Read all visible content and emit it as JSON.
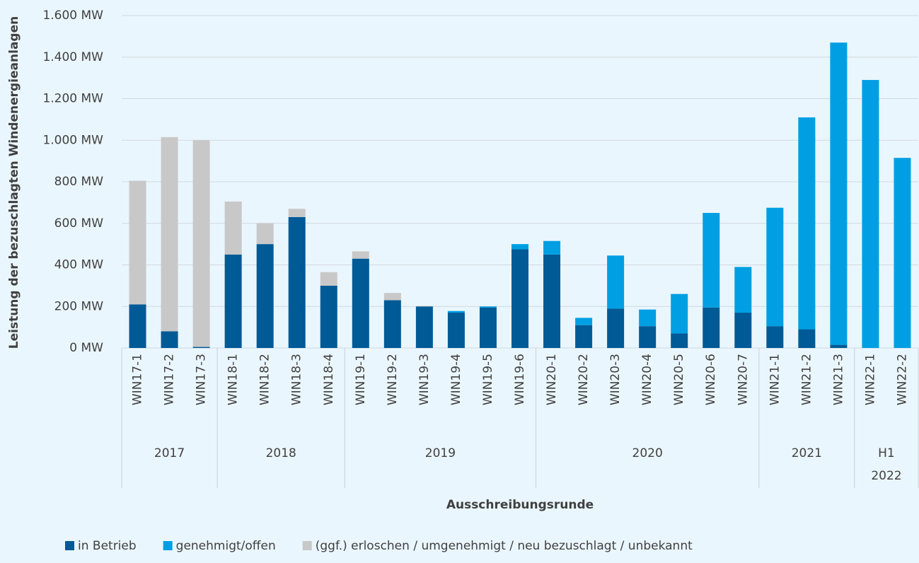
{
  "chart_data": {
    "type": "bar",
    "stacked": true,
    "x_label": "Ausschreibungsrunde",
    "y_label": "Leistung der bezuschlagten Windenergieanlagen",
    "categories": [
      "WIN17-1",
      "WIN17-2",
      "WIN17-3",
      "WIN18-1",
      "WIN18-2",
      "WIN18-3",
      "WIN18-4",
      "WIN19-1",
      "WIN19-2",
      "WIN19-3",
      "WIN19-4",
      "WIN19-5",
      "WIN19-6",
      "WIN20-1",
      "WIN20-2",
      "WIN20-3",
      "WIN20-4",
      "WIN20-5",
      "WIN20-6",
      "WIN20-7",
      "WIN21-1",
      "WIN21-2",
      "WIN21-3",
      "WIN22-1",
      "WIN22-2"
    ],
    "groups": [
      {
        "lines": [
          "2017"
        ],
        "size": 3
      },
      {
        "lines": [
          "2018"
        ],
        "size": 4
      },
      {
        "lines": [
          "2019"
        ],
        "size": 6
      },
      {
        "lines": [
          "2020"
        ],
        "size": 7
      },
      {
        "lines": [
          "2021"
        ],
        "size": 3
      },
      {
        "lines": [
          "H1",
          "2022"
        ],
        "size": 2
      }
    ],
    "series": [
      {
        "name": "in Betrieb",
        "color": "#005a96",
        "values": [
          210,
          80,
          5,
          450,
          500,
          630,
          300,
          430,
          230,
          200,
          170,
          195,
          475,
          450,
          110,
          190,
          105,
          70,
          195,
          170,
          105,
          90,
          15,
          0,
          0
        ]
      },
      {
        "name": "genehmigt/offen",
        "color": "#009fe3",
        "values": [
          0,
          0,
          0,
          0,
          0,
          0,
          0,
          0,
          0,
          0,
          8,
          5,
          25,
          65,
          35,
          255,
          80,
          190,
          455,
          220,
          570,
          1020,
          1455,
          1290,
          915
        ]
      },
      {
        "name": "(ggf.) erloschen / umgenehmigt / neu bezuschlagt / unbekannt",
        "color": "#c8c8c8",
        "values": [
          595,
          935,
          995,
          255,
          100,
          40,
          65,
          35,
          35,
          2,
          0,
          0,
          0,
          0,
          0,
          0,
          0,
          0,
          0,
          0,
          0,
          0,
          0,
          0,
          0
        ]
      }
    ],
    "ylim": [
      0,
      1600
    ],
    "yticks": [
      {
        "value": 0,
        "label": "0 MW"
      },
      {
        "value": 200,
        "label": "200 MW"
      },
      {
        "value": 400,
        "label": "400 MW"
      },
      {
        "value": 600,
        "label": "600 MW"
      },
      {
        "value": 800,
        "label": "800 MW"
      },
      {
        "value": 1000,
        "label": "1.000 MW"
      },
      {
        "value": 1200,
        "label": "1.200 MW"
      },
      {
        "value": 1400,
        "label": "1.400 MW"
      },
      {
        "value": 1600,
        "label": "1.600 MW"
      }
    ],
    "grid": true,
    "legend": "bottom-left"
  }
}
